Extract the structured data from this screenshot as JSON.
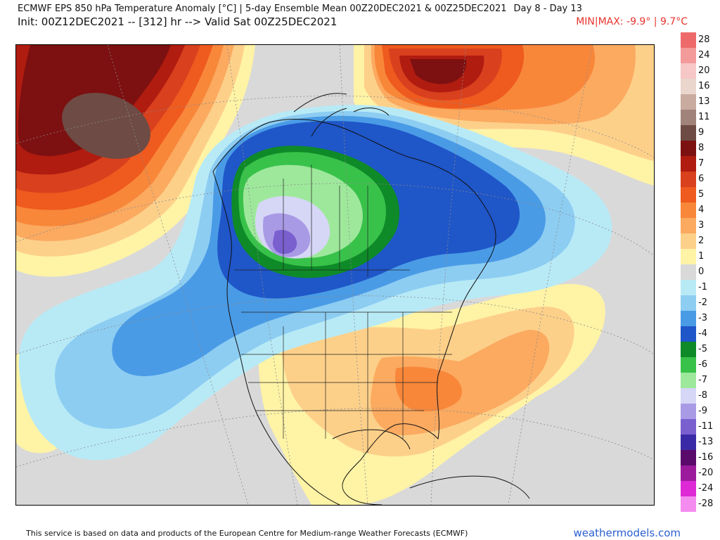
{
  "header": {
    "line1": "ECMWF EPS 850 hPa Temperature Anomaly [°C] | 5-day Ensemble Mean 00Z20DEC2021 & 00Z25DEC2021",
    "days": "Day 8 - Day 13",
    "line2": "Init: 00Z12DEC2021 -- [312] hr --> Valid Sat 00Z25DEC2021",
    "minmax": "MIN|MAX: -9.9° | 9.7°C"
  },
  "legend": [
    {
      "label": "28",
      "color": "#ee6a6a"
    },
    {
      "label": "24",
      "color": "#f39a9a"
    },
    {
      "label": "20",
      "color": "#f7c6c6"
    },
    {
      "label": "16",
      "color": "#ead6cc"
    },
    {
      "label": "13",
      "color": "#c9aba0"
    },
    {
      "label": "11",
      "color": "#a0837a"
    },
    {
      "label": "9",
      "color": "#6e4b44"
    },
    {
      "label": "8",
      "color": "#7d1010"
    },
    {
      "label": "7",
      "color": "#b01c10"
    },
    {
      "label": "6",
      "color": "#d8401e"
    },
    {
      "label": "5",
      "color": "#ef5a1e"
    },
    {
      "label": "4",
      "color": "#f8873a"
    },
    {
      "label": "3",
      "color": "#fbaa60"
    },
    {
      "label": "2",
      "color": "#fdd08a"
    },
    {
      "label": "1",
      "color": "#fff3a6"
    },
    {
      "label": "0",
      "color": "#d9d9d9"
    },
    {
      "label": "-1",
      "color": "#b8eaf6"
    },
    {
      "label": "-2",
      "color": "#8dcdf2"
    },
    {
      "label": "-3",
      "color": "#4a9be6"
    },
    {
      "label": "-4",
      "color": "#1f56c8"
    },
    {
      "label": "-5",
      "color": "#0e8a28"
    },
    {
      "label": "-6",
      "color": "#39c24a"
    },
    {
      "label": "-7",
      "color": "#9ee89c"
    },
    {
      "label": "-8",
      "color": "#d6d6f6"
    },
    {
      "label": "-9",
      "color": "#a99ae6"
    },
    {
      "label": "-11",
      "color": "#7a5fcf"
    },
    {
      "label": "-13",
      "color": "#3b2aa6"
    },
    {
      "label": "-16",
      "color": "#5a0a6a"
    },
    {
      "label": "-20",
      "color": "#9c1a9c"
    },
    {
      "label": "-24",
      "color": "#dd2ad6"
    },
    {
      "label": "-28",
      "color": "#f48cf0"
    }
  ],
  "footer": {
    "credit": "This service is based on data and products of the European Centre for Medium-range Weather Forecasts (ECMWF)",
    "brand": "weathermodels.com"
  }
}
